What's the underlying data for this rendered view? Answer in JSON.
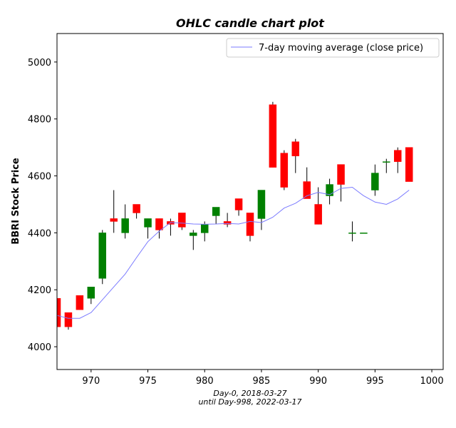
{
  "chart_data": {
    "type": "candlestick",
    "title": "OHLC candle chart plot",
    "ylabel": "BBRI Stock Price",
    "xlabel_lines": [
      "Day-0, 2018-03-27",
      "until Day-998, 2022-03-17"
    ],
    "xlim": [
      967,
      1001
    ],
    "ylim": [
      3920,
      5100
    ],
    "x_ticks": [
      970,
      975,
      980,
      985,
      990,
      995,
      1000
    ],
    "y_ticks": [
      4000,
      4200,
      4400,
      4600,
      4800,
      5000
    ],
    "grid": false,
    "legend": {
      "placement": "top-right",
      "entries": [
        "7-day moving average (close price)"
      ]
    },
    "colors": {
      "up": "#008000",
      "down": "#ff0000",
      "wick": "#000000",
      "ma_line": "#7b7bff",
      "axes": "#000000"
    },
    "candles": [
      {
        "day": 967,
        "open": 4170,
        "high": 4170,
        "low": 4070,
        "close": 4070
      },
      {
        "day": 968,
        "open": 4120,
        "high": 4120,
        "low": 4060,
        "close": 4070
      },
      {
        "day": 969,
        "open": 4180,
        "high": 4180,
        "low": 4130,
        "close": 4130
      },
      {
        "day": 970,
        "open": 4170,
        "high": 4210,
        "low": 4150,
        "close": 4210
      },
      {
        "day": 971,
        "open": 4240,
        "high": 4410,
        "low": 4220,
        "close": 4400
      },
      {
        "day": 972,
        "open": 4450,
        "high": 4550,
        "low": 4400,
        "close": 4440
      },
      {
        "day": 973,
        "open": 4400,
        "high": 4500,
        "low": 4380,
        "close": 4450
      },
      {
        "day": 974,
        "open": 4500,
        "high": 4500,
        "low": 4450,
        "close": 4470
      },
      {
        "day": 975,
        "open": 4420,
        "high": 4450,
        "low": 4380,
        "close": 4450
      },
      {
        "day": 976,
        "open": 4450,
        "high": 4450,
        "low": 4380,
        "close": 4410
      },
      {
        "day": 977,
        "open": 4440,
        "high": 4450,
        "low": 4390,
        "close": 4430
      },
      {
        "day": 978,
        "open": 4470,
        "high": 4470,
        "low": 4410,
        "close": 4420
      },
      {
        "day": 979,
        "open": 4390,
        "high": 4410,
        "low": 4340,
        "close": 4400
      },
      {
        "day": 980,
        "open": 4400,
        "high": 4440,
        "low": 4370,
        "close": 4430
      },
      {
        "day": 981,
        "open": 4460,
        "high": 4490,
        "low": 4430,
        "close": 4490
      },
      {
        "day": 982,
        "open": 4440,
        "high": 4470,
        "low": 4420,
        "close": 4430
      },
      {
        "day": 983,
        "open": 4520,
        "high": 4520,
        "low": 4460,
        "close": 4480
      },
      {
        "day": 984,
        "open": 4470,
        "high": 4470,
        "low": 4370,
        "close": 4390
      },
      {
        "day": 985,
        "open": 4450,
        "high": 4550,
        "low": 4410,
        "close": 4550
      },
      {
        "day": 986,
        "open": 4850,
        "high": 4860,
        "low": 4630,
        "close": 4630
      },
      {
        "day": 987,
        "open": 4680,
        "high": 4690,
        "low": 4550,
        "close": 4560
      },
      {
        "day": 988,
        "open": 4720,
        "high": 4730,
        "low": 4610,
        "close": 4670
      },
      {
        "day": 989,
        "open": 4580,
        "high": 4630,
        "low": 4520,
        "close": 4520
      },
      {
        "day": 990,
        "open": 4500,
        "high": 4560,
        "low": 4430,
        "close": 4430
      },
      {
        "day": 991,
        "open": 4530,
        "high": 4590,
        "low": 4500,
        "close": 4570
      },
      {
        "day": 992,
        "open": 4640,
        "high": 4640,
        "low": 4510,
        "close": 4570
      },
      {
        "day": 993,
        "open": 4400,
        "high": 4440,
        "low": 4370,
        "close": 4400
      },
      {
        "day": 994,
        "open": 4400,
        "high": 4400,
        "low": 4400,
        "close": 4400
      },
      {
        "day": 995,
        "open": 4550,
        "high": 4640,
        "low": 4530,
        "close": 4610
      },
      {
        "day": 996,
        "open": 4650,
        "high": 4660,
        "low": 4610,
        "close": 4650
      },
      {
        "day": 997,
        "open": 4690,
        "high": 4700,
        "low": 4610,
        "close": 4650
      },
      {
        "day": 998,
        "open": 4700,
        "high": 4700,
        "low": 4580,
        "close": 4580
      }
    ],
    "moving_average": {
      "name": "7-day moving average (close price)",
      "x": [
        967,
        968,
        969,
        970,
        971,
        972,
        973,
        974,
        975,
        976,
        977,
        978,
        979,
        980,
        981,
        982,
        983,
        984,
        985,
        986,
        987,
        988,
        989,
        990,
        991,
        992,
        993,
        994,
        995,
        996,
        997,
        998
      ],
      "y": [
        4110,
        4100,
        4100,
        4120,
        4165,
        4210,
        4255,
        4313,
        4369,
        4406,
        4436,
        4434,
        4431,
        4430,
        4431,
        4433,
        4431,
        4440,
        4436,
        4455,
        4487,
        4504,
        4530,
        4542,
        4534,
        4556,
        4560,
        4530,
        4508,
        4500,
        4519,
        4550
      ]
    }
  }
}
